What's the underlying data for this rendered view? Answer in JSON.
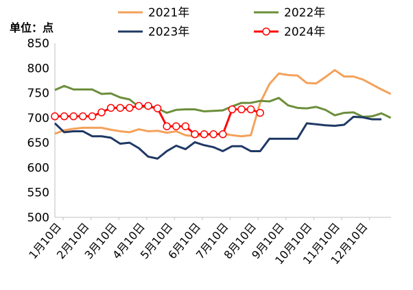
{
  "chart_data": {
    "type": "line",
    "unit_label": "单位：点",
    "ylim": [
      500,
      850
    ],
    "y_ticks": [
      "500",
      "550",
      "600",
      "650",
      "700",
      "750",
      "800",
      "850"
    ],
    "x_ticks": [
      "1月10日",
      "2月10日",
      "3月10日",
      "4月10日",
      "5月10日",
      "6月10日",
      "7月10日",
      "8月10日",
      "9月10日",
      "10月10日",
      "11月10日",
      "12月10日"
    ],
    "grid": false,
    "legend_position": "top",
    "series": [
      {
        "name": "2021年",
        "color": "#F4A15A",
        "marker": "none",
        "values": [
          668,
          675,
          678,
          680,
          680,
          680,
          676,
          673,
          671,
          677,
          673,
          674,
          670,
          673,
          665,
          663,
          665,
          667,
          668,
          665,
          663,
          665,
          730,
          768,
          789,
          786,
          785,
          770,
          769,
          782,
          796,
          783,
          783,
          777,
          767,
          757,
          748
        ]
      },
      {
        "name": "2022年",
        "color": "#6B8E3A",
        "marker": "none",
        "values": [
          756,
          764,
          757,
          757,
          757,
          748,
          749,
          741,
          737,
          722,
          722,
          719,
          710,
          716,
          717,
          717,
          713,
          714,
          715,
          723,
          730,
          730,
          734,
          733,
          740,
          725,
          720,
          719,
          722,
          716,
          705,
          710,
          711,
          702,
          703,
          709,
          700
        ]
      },
      {
        "name": "2023年",
        "color": "#1F3864",
        "marker": "none",
        "values": [
          689,
          671,
          673,
          673,
          663,
          663,
          660,
          648,
          650,
          639,
          622,
          618,
          633,
          644,
          637,
          651,
          645,
          641,
          633,
          643,
          643,
          633,
          633,
          658,
          658,
          658,
          658,
          689,
          687,
          685,
          684,
          686,
          702,
          701,
          697,
          697
        ]
      },
      {
        "name": "2024年",
        "color": "#FF0000",
        "marker": "circle",
        "values": [
          703,
          703,
          703,
          703,
          703,
          711,
          720,
          720,
          720,
          724,
          724,
          719,
          683,
          683,
          683,
          667,
          667,
          667,
          667,
          717,
          717,
          717,
          710
        ]
      }
    ]
  }
}
